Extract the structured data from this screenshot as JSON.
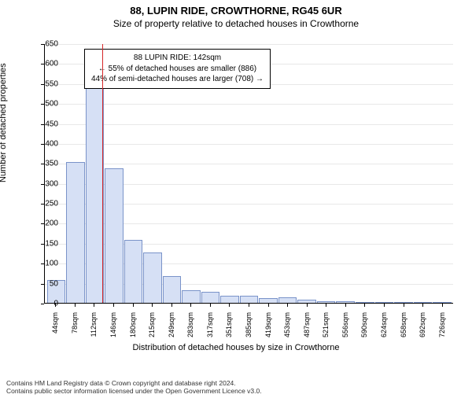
{
  "title": "88, LUPIN RIDE, CROWTHORNE, RG45 6UR",
  "subtitle": "Size of property relative to detached houses in Crowthorne",
  "ylabel": "Number of detached properties",
  "xlabel": "Distribution of detached houses by size in Crowthorne",
  "chart": {
    "type": "histogram",
    "bar_fill": "#d6e0f5",
    "bar_stroke": "#7a93c9",
    "grid_color": "#e8e8e8",
    "marker_color": "#d62728",
    "background_color": "#ffffff",
    "ylim": [
      0,
      650
    ],
    "ytick_step": 50,
    "values": [
      55,
      350,
      535,
      335,
      155,
      125,
      65,
      30,
      25,
      15,
      15,
      10,
      12,
      5,
      2,
      2,
      1,
      1,
      1,
      1,
      1
    ],
    "xticks": [
      "44sqm",
      "78sqm",
      "112sqm",
      "146sqm",
      "180sqm",
      "215sqm",
      "249sqm",
      "283sqm",
      "317sqm",
      "351sqm",
      "385sqm",
      "419sqm",
      "453sqm",
      "487sqm",
      "521sqm",
      "556sqm",
      "590sqm",
      "624sqm",
      "658sqm",
      "692sqm",
      "726sqm"
    ],
    "marker_bin_index": 2,
    "marker_fractional": 0.88
  },
  "annotation": {
    "line1": "88 LUPIN RIDE: 142sqm",
    "line2": "← 55% of detached houses are smaller (886)",
    "line3": "44% of semi-detached houses are larger (708) →"
  },
  "footer": {
    "line1": "Contains HM Land Registry data © Crown copyright and database right 2024.",
    "line2": "Contains public sector information licensed under the Open Government Licence v3.0."
  }
}
